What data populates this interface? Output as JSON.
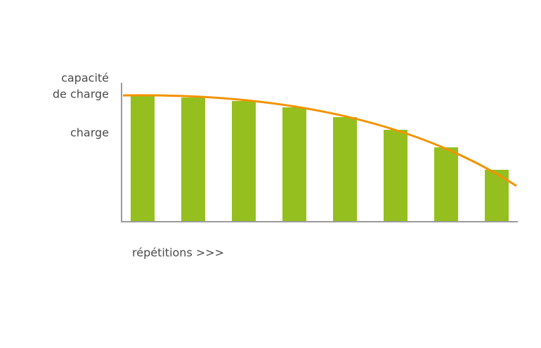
{
  "labels": {
    "capacity_line1": "capacité",
    "capacity_line2": "de charge",
    "load": "charge",
    "x_axis": "répétitions >>>"
  }
}
